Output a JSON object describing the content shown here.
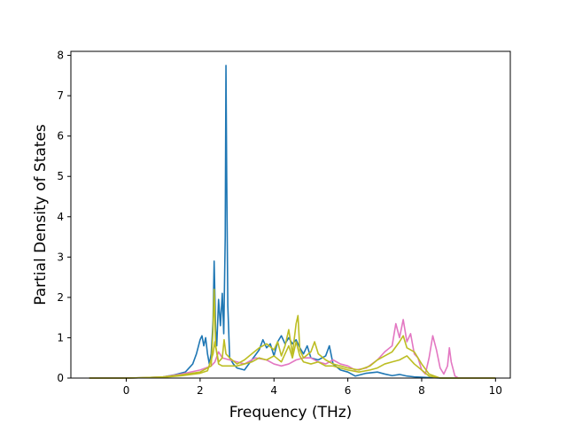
{
  "chart_data": {
    "type": "line",
    "title": "",
    "xlabel": "Frequency (THz)",
    "ylabel": "Partial Density of States",
    "xlim": [
      -1.5,
      10.4
    ],
    "ylim": [
      0,
      8.1
    ],
    "xticks": [
      0,
      2,
      4,
      6,
      8,
      10
    ],
    "yticks": [
      0,
      1,
      2,
      3,
      4,
      5,
      6,
      7,
      8
    ],
    "grid": false,
    "legend": "none",
    "series": [
      {
        "color": "#1f77b4",
        "points": [
          [
            -1,
            0
          ],
          [
            0,
            0
          ],
          [
            0.5,
            0.01
          ],
          [
            1,
            0.03
          ],
          [
            1.3,
            0.08
          ],
          [
            1.6,
            0.15
          ],
          [
            1.8,
            0.35
          ],
          [
            1.9,
            0.6
          ],
          [
            2.0,
            0.95
          ],
          [
            2.05,
            1.05
          ],
          [
            2.1,
            0.8
          ],
          [
            2.15,
            1.0
          ],
          [
            2.2,
            0.6
          ],
          [
            2.25,
            0.35
          ],
          [
            2.3,
            0.6
          ],
          [
            2.35,
            1.4
          ],
          [
            2.38,
            2.9
          ],
          [
            2.42,
            1.2
          ],
          [
            2.45,
            0.8
          ],
          [
            2.5,
            1.95
          ],
          [
            2.55,
            1.3
          ],
          [
            2.6,
            2.1
          ],
          [
            2.64,
            1.1
          ],
          [
            2.68,
            3.5
          ],
          [
            2.7,
            7.75
          ],
          [
            2.72,
            5.0
          ],
          [
            2.75,
            1.8
          ],
          [
            2.8,
            0.5
          ],
          [
            2.9,
            0.35
          ],
          [
            3.0,
            0.25
          ],
          [
            3.2,
            0.2
          ],
          [
            3.4,
            0.45
          ],
          [
            3.6,
            0.7
          ],
          [
            3.7,
            0.95
          ],
          [
            3.8,
            0.75
          ],
          [
            3.9,
            0.85
          ],
          [
            4.0,
            0.55
          ],
          [
            4.1,
            0.9
          ],
          [
            4.2,
            1.05
          ],
          [
            4.3,
            0.85
          ],
          [
            4.4,
            1.0
          ],
          [
            4.5,
            0.85
          ],
          [
            4.6,
            0.95
          ],
          [
            4.7,
            0.75
          ],
          [
            4.8,
            0.6
          ],
          [
            4.9,
            0.8
          ],
          [
            5.0,
            0.5
          ],
          [
            5.2,
            0.45
          ],
          [
            5.4,
            0.55
          ],
          [
            5.5,
            0.8
          ],
          [
            5.6,
            0.35
          ],
          [
            5.8,
            0.2
          ],
          [
            6.0,
            0.15
          ],
          [
            6.2,
            0.05
          ],
          [
            6.5,
            0.12
          ],
          [
            6.8,
            0.15
          ],
          [
            7.0,
            0.1
          ],
          [
            7.2,
            0.06
          ],
          [
            7.4,
            0.09
          ],
          [
            7.6,
            0.05
          ],
          [
            7.8,
            0.03
          ],
          [
            8.0,
            0.02
          ],
          [
            8.5,
            0
          ],
          [
            10,
            0
          ]
        ]
      },
      {
        "color": "#e377c2",
        "points": [
          [
            -1,
            0
          ],
          [
            0,
            0
          ],
          [
            0.5,
            0.01
          ],
          [
            1,
            0.03
          ],
          [
            1.5,
            0.1
          ],
          [
            2.0,
            0.2
          ],
          [
            2.3,
            0.3
          ],
          [
            2.4,
            0.4
          ],
          [
            2.5,
            0.65
          ],
          [
            2.6,
            0.5
          ],
          [
            2.8,
            0.45
          ],
          [
            3.0,
            0.4
          ],
          [
            3.2,
            0.35
          ],
          [
            3.5,
            0.5
          ],
          [
            3.8,
            0.45
          ],
          [
            4.0,
            0.35
          ],
          [
            4.2,
            0.3
          ],
          [
            4.4,
            0.35
          ],
          [
            4.6,
            0.45
          ],
          [
            4.8,
            0.5
          ],
          [
            5.0,
            0.5
          ],
          [
            5.2,
            0.4
          ],
          [
            5.4,
            0.35
          ],
          [
            5.6,
            0.45
          ],
          [
            5.8,
            0.35
          ],
          [
            6.0,
            0.3
          ],
          [
            6.2,
            0.2
          ],
          [
            6.5,
            0.25
          ],
          [
            6.8,
            0.45
          ],
          [
            7.0,
            0.65
          ],
          [
            7.2,
            0.8
          ],
          [
            7.3,
            1.35
          ],
          [
            7.4,
            1.0
          ],
          [
            7.5,
            1.45
          ],
          [
            7.6,
            0.9
          ],
          [
            7.7,
            1.1
          ],
          [
            7.8,
            0.6
          ],
          [
            7.9,
            0.5
          ],
          [
            8.0,
            0.2
          ],
          [
            8.1,
            0.1
          ],
          [
            8.2,
            0.5
          ],
          [
            8.3,
            1.05
          ],
          [
            8.4,
            0.7
          ],
          [
            8.5,
            0.25
          ],
          [
            8.6,
            0.1
          ],
          [
            8.7,
            0.3
          ],
          [
            8.75,
            0.75
          ],
          [
            8.8,
            0.4
          ],
          [
            8.9,
            0.05
          ],
          [
            9.0,
            0
          ],
          [
            10,
            0
          ]
        ]
      },
      {
        "color": "#bcbd22",
        "points": [
          [
            -1,
            0
          ],
          [
            0,
            0
          ],
          [
            0.5,
            0.01
          ],
          [
            1,
            0.03
          ],
          [
            1.5,
            0.08
          ],
          [
            2.0,
            0.15
          ],
          [
            2.2,
            0.25
          ],
          [
            2.3,
            0.3
          ],
          [
            2.35,
            1.2
          ],
          [
            2.38,
            2.2
          ],
          [
            2.42,
            0.8
          ],
          [
            2.5,
            0.4
          ],
          [
            2.6,
            0.5
          ],
          [
            2.65,
            0.95
          ],
          [
            2.7,
            0.6
          ],
          [
            2.8,
            0.5
          ],
          [
            3.0,
            0.35
          ],
          [
            3.2,
            0.45
          ],
          [
            3.4,
            0.6
          ],
          [
            3.6,
            0.75
          ],
          [
            3.8,
            0.85
          ],
          [
            4.0,
            0.7
          ],
          [
            4.1,
            0.9
          ],
          [
            4.2,
            0.55
          ],
          [
            4.3,
            0.8
          ],
          [
            4.4,
            1.2
          ],
          [
            4.5,
            0.6
          ],
          [
            4.6,
            1.35
          ],
          [
            4.65,
            1.55
          ],
          [
            4.7,
            0.7
          ],
          [
            4.8,
            0.5
          ],
          [
            5.0,
            0.65
          ],
          [
            5.1,
            0.9
          ],
          [
            5.2,
            0.6
          ],
          [
            5.4,
            0.45
          ],
          [
            5.6,
            0.35
          ],
          [
            5.8,
            0.3
          ],
          [
            6.0,
            0.25
          ],
          [
            6.3,
            0.2
          ],
          [
            6.6,
            0.3
          ],
          [
            6.8,
            0.45
          ],
          [
            7.0,
            0.55
          ],
          [
            7.2,
            0.65
          ],
          [
            7.4,
            0.9
          ],
          [
            7.5,
            1.05
          ],
          [
            7.6,
            0.75
          ],
          [
            7.8,
            0.65
          ],
          [
            8.0,
            0.35
          ],
          [
            8.2,
            0.1
          ],
          [
            8.5,
            0
          ],
          [
            10,
            0
          ]
        ]
      },
      {
        "color": "#bcbd22",
        "points": [
          [
            -1,
            0
          ],
          [
            0,
            0
          ],
          [
            0.5,
            0.01
          ],
          [
            1,
            0.02
          ],
          [
            1.5,
            0.06
          ],
          [
            2.0,
            0.12
          ],
          [
            2.2,
            0.18
          ],
          [
            2.35,
            0.6
          ],
          [
            2.4,
            0.9
          ],
          [
            2.5,
            0.35
          ],
          [
            2.6,
            0.3
          ],
          [
            2.8,
            0.3
          ],
          [
            3.0,
            0.3
          ],
          [
            3.2,
            0.35
          ],
          [
            3.4,
            0.4
          ],
          [
            3.6,
            0.5
          ],
          [
            3.8,
            0.45
          ],
          [
            4.0,
            0.55
          ],
          [
            4.2,
            0.4
          ],
          [
            4.4,
            0.8
          ],
          [
            4.5,
            0.5
          ],
          [
            4.6,
            0.9
          ],
          [
            4.7,
            0.55
          ],
          [
            4.8,
            0.4
          ],
          [
            5.0,
            0.35
          ],
          [
            5.2,
            0.4
          ],
          [
            5.4,
            0.3
          ],
          [
            5.6,
            0.3
          ],
          [
            5.8,
            0.25
          ],
          [
            6.0,
            0.2
          ],
          [
            6.3,
            0.15
          ],
          [
            6.6,
            0.2
          ],
          [
            6.8,
            0.25
          ],
          [
            7.0,
            0.35
          ],
          [
            7.2,
            0.4
          ],
          [
            7.4,
            0.45
          ],
          [
            7.6,
            0.55
          ],
          [
            7.8,
            0.35
          ],
          [
            8.0,
            0.2
          ],
          [
            8.2,
            0.05
          ],
          [
            8.5,
            0
          ],
          [
            10,
            0
          ]
        ]
      }
    ]
  }
}
